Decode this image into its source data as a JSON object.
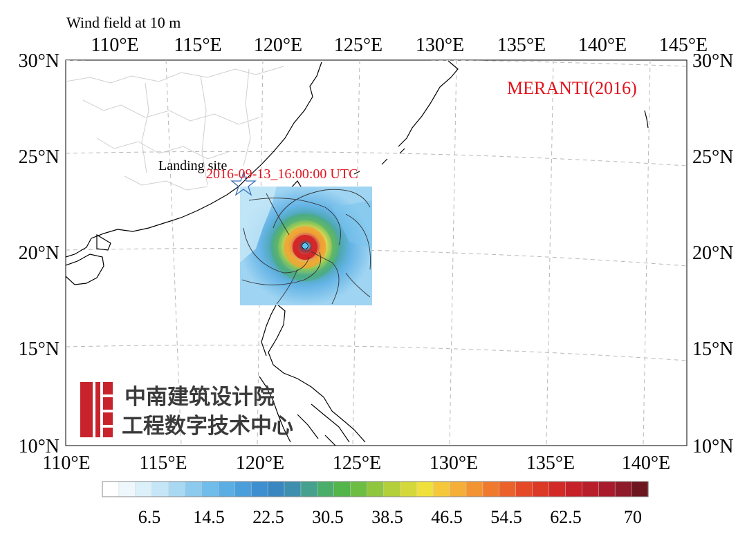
{
  "figure": {
    "title": "Wind field at 10 m",
    "storm_name": "MERANTI(2016)",
    "timestamp": "2016-09-13_16:00:00 UTC",
    "landing_label": "Landing site",
    "storm_name_color": "#e0141e",
    "timestamp_color": "#e0141e"
  },
  "axes": {
    "top_lon_ticks": [
      "110°E",
      "115°E",
      "120°E",
      "125°E",
      "130°E",
      "135°E",
      "140°E",
      "145°E"
    ],
    "bottom_lon_ticks": [
      "110°E",
      "115°E",
      "120°E",
      "125°E",
      "130°E",
      "135°E",
      "140°E"
    ],
    "lat_ticks": [
      "30°N",
      "25°N",
      "20°N",
      "15°N",
      "10°N"
    ],
    "lon_range": [
      110,
      142
    ],
    "lat_range": [
      10,
      30
    ]
  },
  "colorbar": {
    "labels": [
      "6.5",
      "14.5",
      "22.5",
      "30.5",
      "38.5",
      "46.5",
      "54.5",
      "62.5",
      "70"
    ],
    "colors": [
      "#ffffff",
      "#eef8fc",
      "#dcf0fa",
      "#c4e6f7",
      "#a9d8f2",
      "#8ccaee",
      "#70bcea",
      "#5aaee4",
      "#4a9fdb",
      "#3d8fd0",
      "#3a86c0",
      "#3e8fae",
      "#45a08e",
      "#4aae6a",
      "#53b54a",
      "#6dbd42",
      "#8fc63d",
      "#b3cf3a",
      "#d4d83a",
      "#f0e03c",
      "#f5c83c",
      "#f5ae38",
      "#f39433",
      "#ef7a2e",
      "#eb612a",
      "#e44a27",
      "#db3826",
      "#d22b27",
      "#c62128",
      "#b81d2a",
      "#a81b2c",
      "#8f1a2a",
      "#6e1620"
    ],
    "value_range": [
      0,
      72
    ]
  },
  "storm": {
    "center_lon": 122.3,
    "center_lat": 20.3,
    "landing_site_lon": 118.1,
    "landing_site_lat": 23.5
  },
  "watermark": {
    "line1": "中南建筑设计院",
    "line2": "工程数字技术中心",
    "logo_color": "#c8232c"
  },
  "icons": {
    "landing_marker": "star-icon",
    "storm_eye": "storm-eye-icon"
  }
}
